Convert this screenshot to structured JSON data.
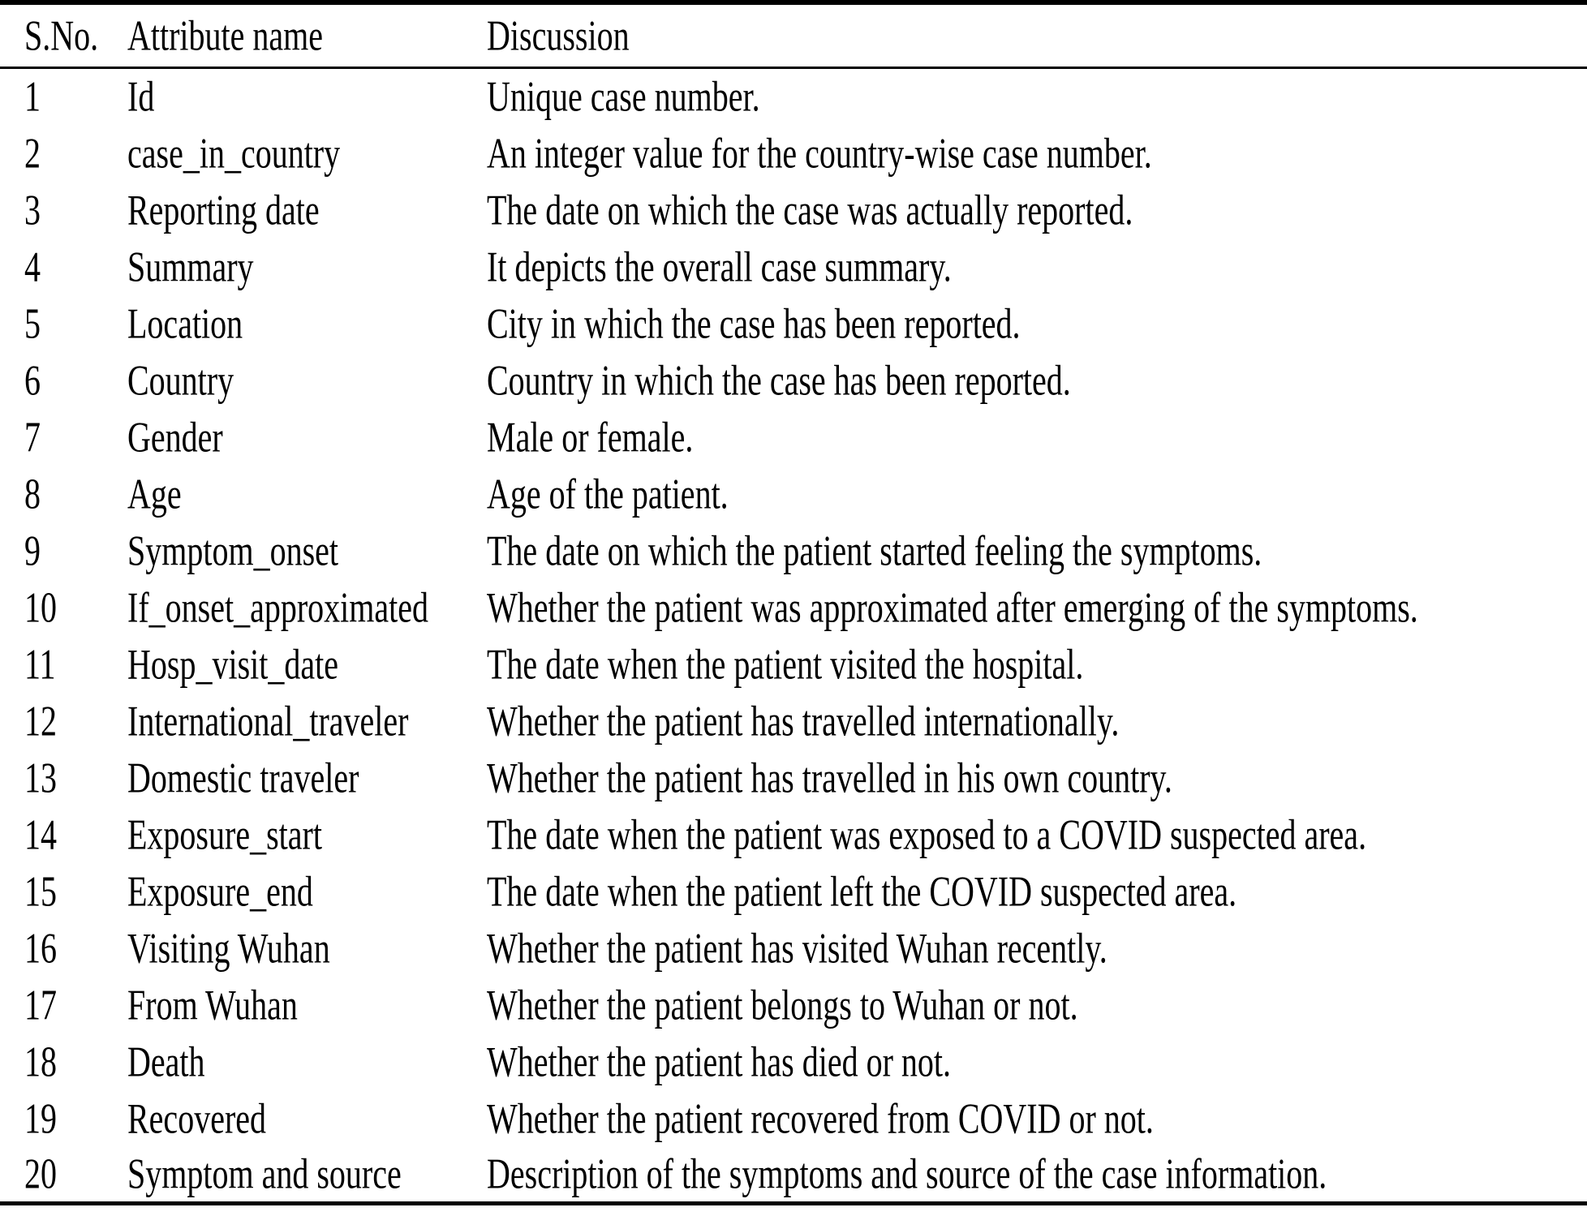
{
  "page": {
    "background": "#ffffff",
    "text_color": "#000000",
    "rule_color": "#000000"
  },
  "table": {
    "columns": [
      {
        "key": "sno",
        "label": "S.No."
      },
      {
        "key": "attribute",
        "label": "Attribute name"
      },
      {
        "key": "discussion",
        "label": "Discussion"
      }
    ],
    "rows": [
      {
        "sno": "1",
        "attribute": "Id",
        "discussion": "Unique case number."
      },
      {
        "sno": "2",
        "attribute": "case_in_country",
        "discussion": "An integer value for the country-wise case number."
      },
      {
        "sno": "3",
        "attribute": "Reporting date",
        "discussion": "The date on which the case was actually reported."
      },
      {
        "sno": "4",
        "attribute": "Summary",
        "discussion": "It depicts the overall case summary."
      },
      {
        "sno": "5",
        "attribute": "Location",
        "discussion": "City in which the case has been reported."
      },
      {
        "sno": "6",
        "attribute": "Country",
        "discussion": "Country in which the case has been reported."
      },
      {
        "sno": "7",
        "attribute": "Gender",
        "discussion": "Male or female."
      },
      {
        "sno": "8",
        "attribute": "Age",
        "discussion": "Age of the patient."
      },
      {
        "sno": "9",
        "attribute": "Symptom_onset",
        "discussion": "The date on which the patient started feeling the symptoms."
      },
      {
        "sno": "10",
        "attribute": "If_onset_approximated",
        "discussion": "Whether the patient was approximated after emerging of the symptoms."
      },
      {
        "sno": "11",
        "attribute": "Hosp_visit_date",
        "discussion": "The date when the patient visited the hospital."
      },
      {
        "sno": "12",
        "attribute": "International_traveler",
        "discussion": "Whether the patient has travelled internationally."
      },
      {
        "sno": "13",
        "attribute": "Domestic traveler",
        "discussion": "Whether the patient has travelled in his own country."
      },
      {
        "sno": "14",
        "attribute": "Exposure_start",
        "discussion": "The date when the patient was exposed to a COVID suspected area."
      },
      {
        "sno": "15",
        "attribute": "Exposure_end",
        "discussion": "The date when the patient left the COVID suspected area."
      },
      {
        "sno": "16",
        "attribute": "Visiting Wuhan",
        "discussion": "Whether the patient has visited Wuhan recently."
      },
      {
        "sno": "17",
        "attribute": "From Wuhan",
        "discussion": "Whether the patient belongs to Wuhan or not."
      },
      {
        "sno": "18",
        "attribute": "Death",
        "discussion": "Whether the patient has died or not."
      },
      {
        "sno": "19",
        "attribute": "Recovered",
        "discussion": "Whether the patient recovered from COVID or not."
      },
      {
        "sno": "20",
        "attribute": "Symptom and source",
        "discussion": "Description of the symptoms and source of the case information."
      }
    ]
  }
}
